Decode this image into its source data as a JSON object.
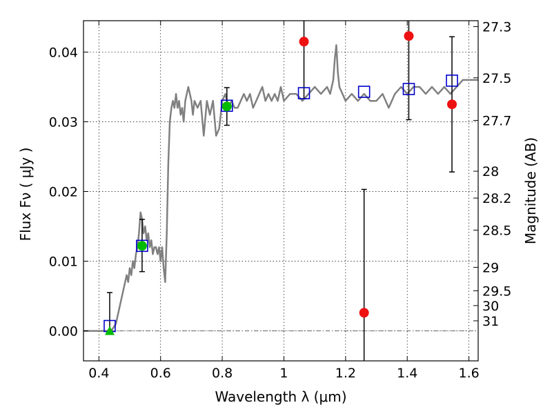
{
  "chart_data": {
    "type": "scatter",
    "title": "",
    "xlabel": "Wavelength  λ (μm)",
    "ylabel": "Flux  Fν ( μJy )",
    "y2label": "Magnitude (AB)",
    "xlim": [
      0.35,
      1.63
    ],
    "ylim": [
      -0.0043,
      0.0445
    ],
    "grid": true,
    "x_ticks": [
      0.4,
      0.6,
      0.8,
      1.0,
      1.2,
      1.4,
      1.6
    ],
    "x_tick_labels": [
      "0.4",
      "0.6",
      "0.8",
      "1",
      "1.2",
      "1.4",
      "1.6"
    ],
    "y_ticks": [
      0.0,
      0.01,
      0.02,
      0.03,
      0.04
    ],
    "y_tick_labels": [
      "0.00",
      "0.01",
      "0.02",
      "0.03",
      "0.04"
    ],
    "mag_ticks": [
      27.3,
      27.5,
      27.7,
      28.0,
      28.2,
      28.5,
      29.0,
      29.5,
      30.0,
      31.0
    ],
    "mag_tick_labels": [
      "27.3",
      "27.5",
      "27.7",
      "28",
      "28.2",
      "28.5",
      "29",
      "29.5",
      "30",
      "31"
    ],
    "series": [
      {
        "kind": "line",
        "color": "#808080",
        "x": [
          0.35,
          0.44,
          0.455,
          0.47,
          0.48,
          0.49,
          0.495,
          0.5,
          0.505,
          0.51,
          0.515,
          0.52,
          0.525,
          0.53,
          0.535,
          0.54,
          0.545,
          0.55,
          0.555,
          0.56,
          0.565,
          0.57,
          0.575,
          0.58,
          0.585,
          0.59,
          0.595,
          0.6,
          0.605,
          0.61,
          0.615,
          0.62,
          0.625,
          0.63,
          0.635,
          0.64,
          0.645,
          0.65,
          0.655,
          0.66,
          0.665,
          0.67,
          0.675,
          0.68,
          0.685,
          0.69,
          0.695,
          0.7,
          0.705,
          0.71,
          0.72,
          0.73,
          0.74,
          0.75,
          0.76,
          0.77,
          0.78,
          0.79,
          0.8,
          0.81,
          0.82,
          0.83,
          0.84,
          0.85,
          0.86,
          0.87,
          0.88,
          0.89,
          0.9,
          0.91,
          0.92,
          0.93,
          0.94,
          0.95,
          0.96,
          0.97,
          0.98,
          0.99,
          1.0,
          1.02,
          1.04,
          1.06,
          1.08,
          1.1,
          1.12,
          1.14,
          1.15,
          1.16,
          1.165,
          1.17,
          1.175,
          1.18,
          1.19,
          1.2,
          1.22,
          1.24,
          1.26,
          1.28,
          1.3,
          1.32,
          1.34,
          1.36,
          1.38,
          1.4,
          1.42,
          1.44,
          1.46,
          1.48,
          1.5,
          1.52,
          1.54,
          1.56,
          1.58,
          1.6,
          1.63
        ],
        "y": [
          0.0,
          0.0,
          0.001,
          0.004,
          0.006,
          0.008,
          0.007,
          0.009,
          0.008,
          0.01,
          0.009,
          0.011,
          0.012,
          0.014,
          0.017,
          0.016,
          0.014,
          0.015,
          0.013,
          0.014,
          0.012,
          0.013,
          0.011,
          0.012,
          0.012,
          0.011,
          0.012,
          0.01,
          0.012,
          0.009,
          0.007,
          0.014,
          0.024,
          0.03,
          0.032,
          0.033,
          0.032,
          0.034,
          0.032,
          0.033,
          0.031,
          0.032,
          0.03,
          0.033,
          0.034,
          0.035,
          0.034,
          0.033,
          0.031,
          0.033,
          0.032,
          0.033,
          0.028,
          0.033,
          0.031,
          0.033,
          0.028,
          0.029,
          0.033,
          0.034,
          0.032,
          0.033,
          0.032,
          0.032,
          0.033,
          0.034,
          0.033,
          0.034,
          0.032,
          0.033,
          0.034,
          0.035,
          0.033,
          0.034,
          0.033,
          0.034,
          0.033,
          0.035,
          0.033,
          0.034,
          0.034,
          0.033,
          0.034,
          0.035,
          0.034,
          0.035,
          0.034,
          0.036,
          0.039,
          0.041,
          0.037,
          0.035,
          0.034,
          0.033,
          0.034,
          0.033,
          0.034,
          0.033,
          0.033,
          0.034,
          0.032,
          0.034,
          0.035,
          0.034,
          0.035,
          0.035,
          0.034,
          0.035,
          0.034,
          0.035,
          0.034,
          0.035,
          0.036,
          0.036,
          0.036
        ]
      },
      {
        "kind": "open-square",
        "color": "#0000cc",
        "x": [
          0.435,
          0.54,
          0.815,
          1.065,
          1.26,
          1.405,
          1.545
        ],
        "y": [
          0.0007,
          0.0122,
          0.0323,
          0.0341,
          0.0343,
          0.0347,
          0.0359
        ]
      },
      {
        "kind": "circle",
        "color": "#00bb00",
        "x": [
          0.54,
          0.815
        ],
        "y": [
          0.0122,
          0.0322
        ]
      },
      {
        "kind": "triangle",
        "color": "#00bb00",
        "x": [
          0.435
        ],
        "y": [
          0.0
        ]
      },
      {
        "kind": "circle",
        "color": "#ee1111",
        "x": [
          1.065,
          1.26,
          1.405,
          1.545
        ],
        "y": [
          0.0415,
          0.0026,
          0.0423,
          0.0325
        ]
      }
    ],
    "error_bars": [
      {
        "x": 0.435,
        "low": 0.0,
        "high": 0.0055
      },
      {
        "x": 0.54,
        "low": 0.0085,
        "high": 0.016
      },
      {
        "x": 0.815,
        "low": 0.0295,
        "high": 0.0349
      },
      {
        "x": 1.065,
        "low": 0.0333,
        "high": 0.0445
      },
      {
        "x": 1.26,
        "low": -0.0043,
        "high": 0.0203
      },
      {
        "x": 1.405,
        "low": 0.0303,
        "high": 0.0445
      },
      {
        "x": 1.545,
        "low": 0.0228,
        "high": 0.0422
      }
    ]
  }
}
